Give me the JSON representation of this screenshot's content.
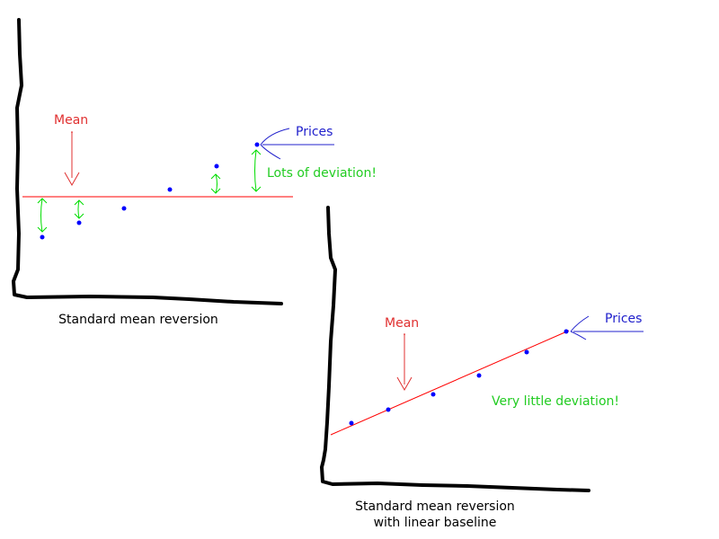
{
  "colors": {
    "axis": "#000000",
    "mean_line": "#ff0000",
    "mean_label": "#e03030",
    "prices": "#0000ff",
    "prices_label": "#2020cc",
    "deviation": "#00dd00",
    "deviation_label": "#22cc22"
  },
  "left_panel": {
    "mean_label": "Mean",
    "prices_label": "Prices",
    "deviation_label": "Lots of deviation!",
    "caption": "Standard mean reversion",
    "point_count": 6
  },
  "right_panel": {
    "mean_label": "Mean",
    "prices_label": "Prices",
    "deviation_label": "Very little deviation!",
    "caption_line1": "Standard mean reversion",
    "caption_line2": "with linear baseline",
    "point_count": 6
  }
}
